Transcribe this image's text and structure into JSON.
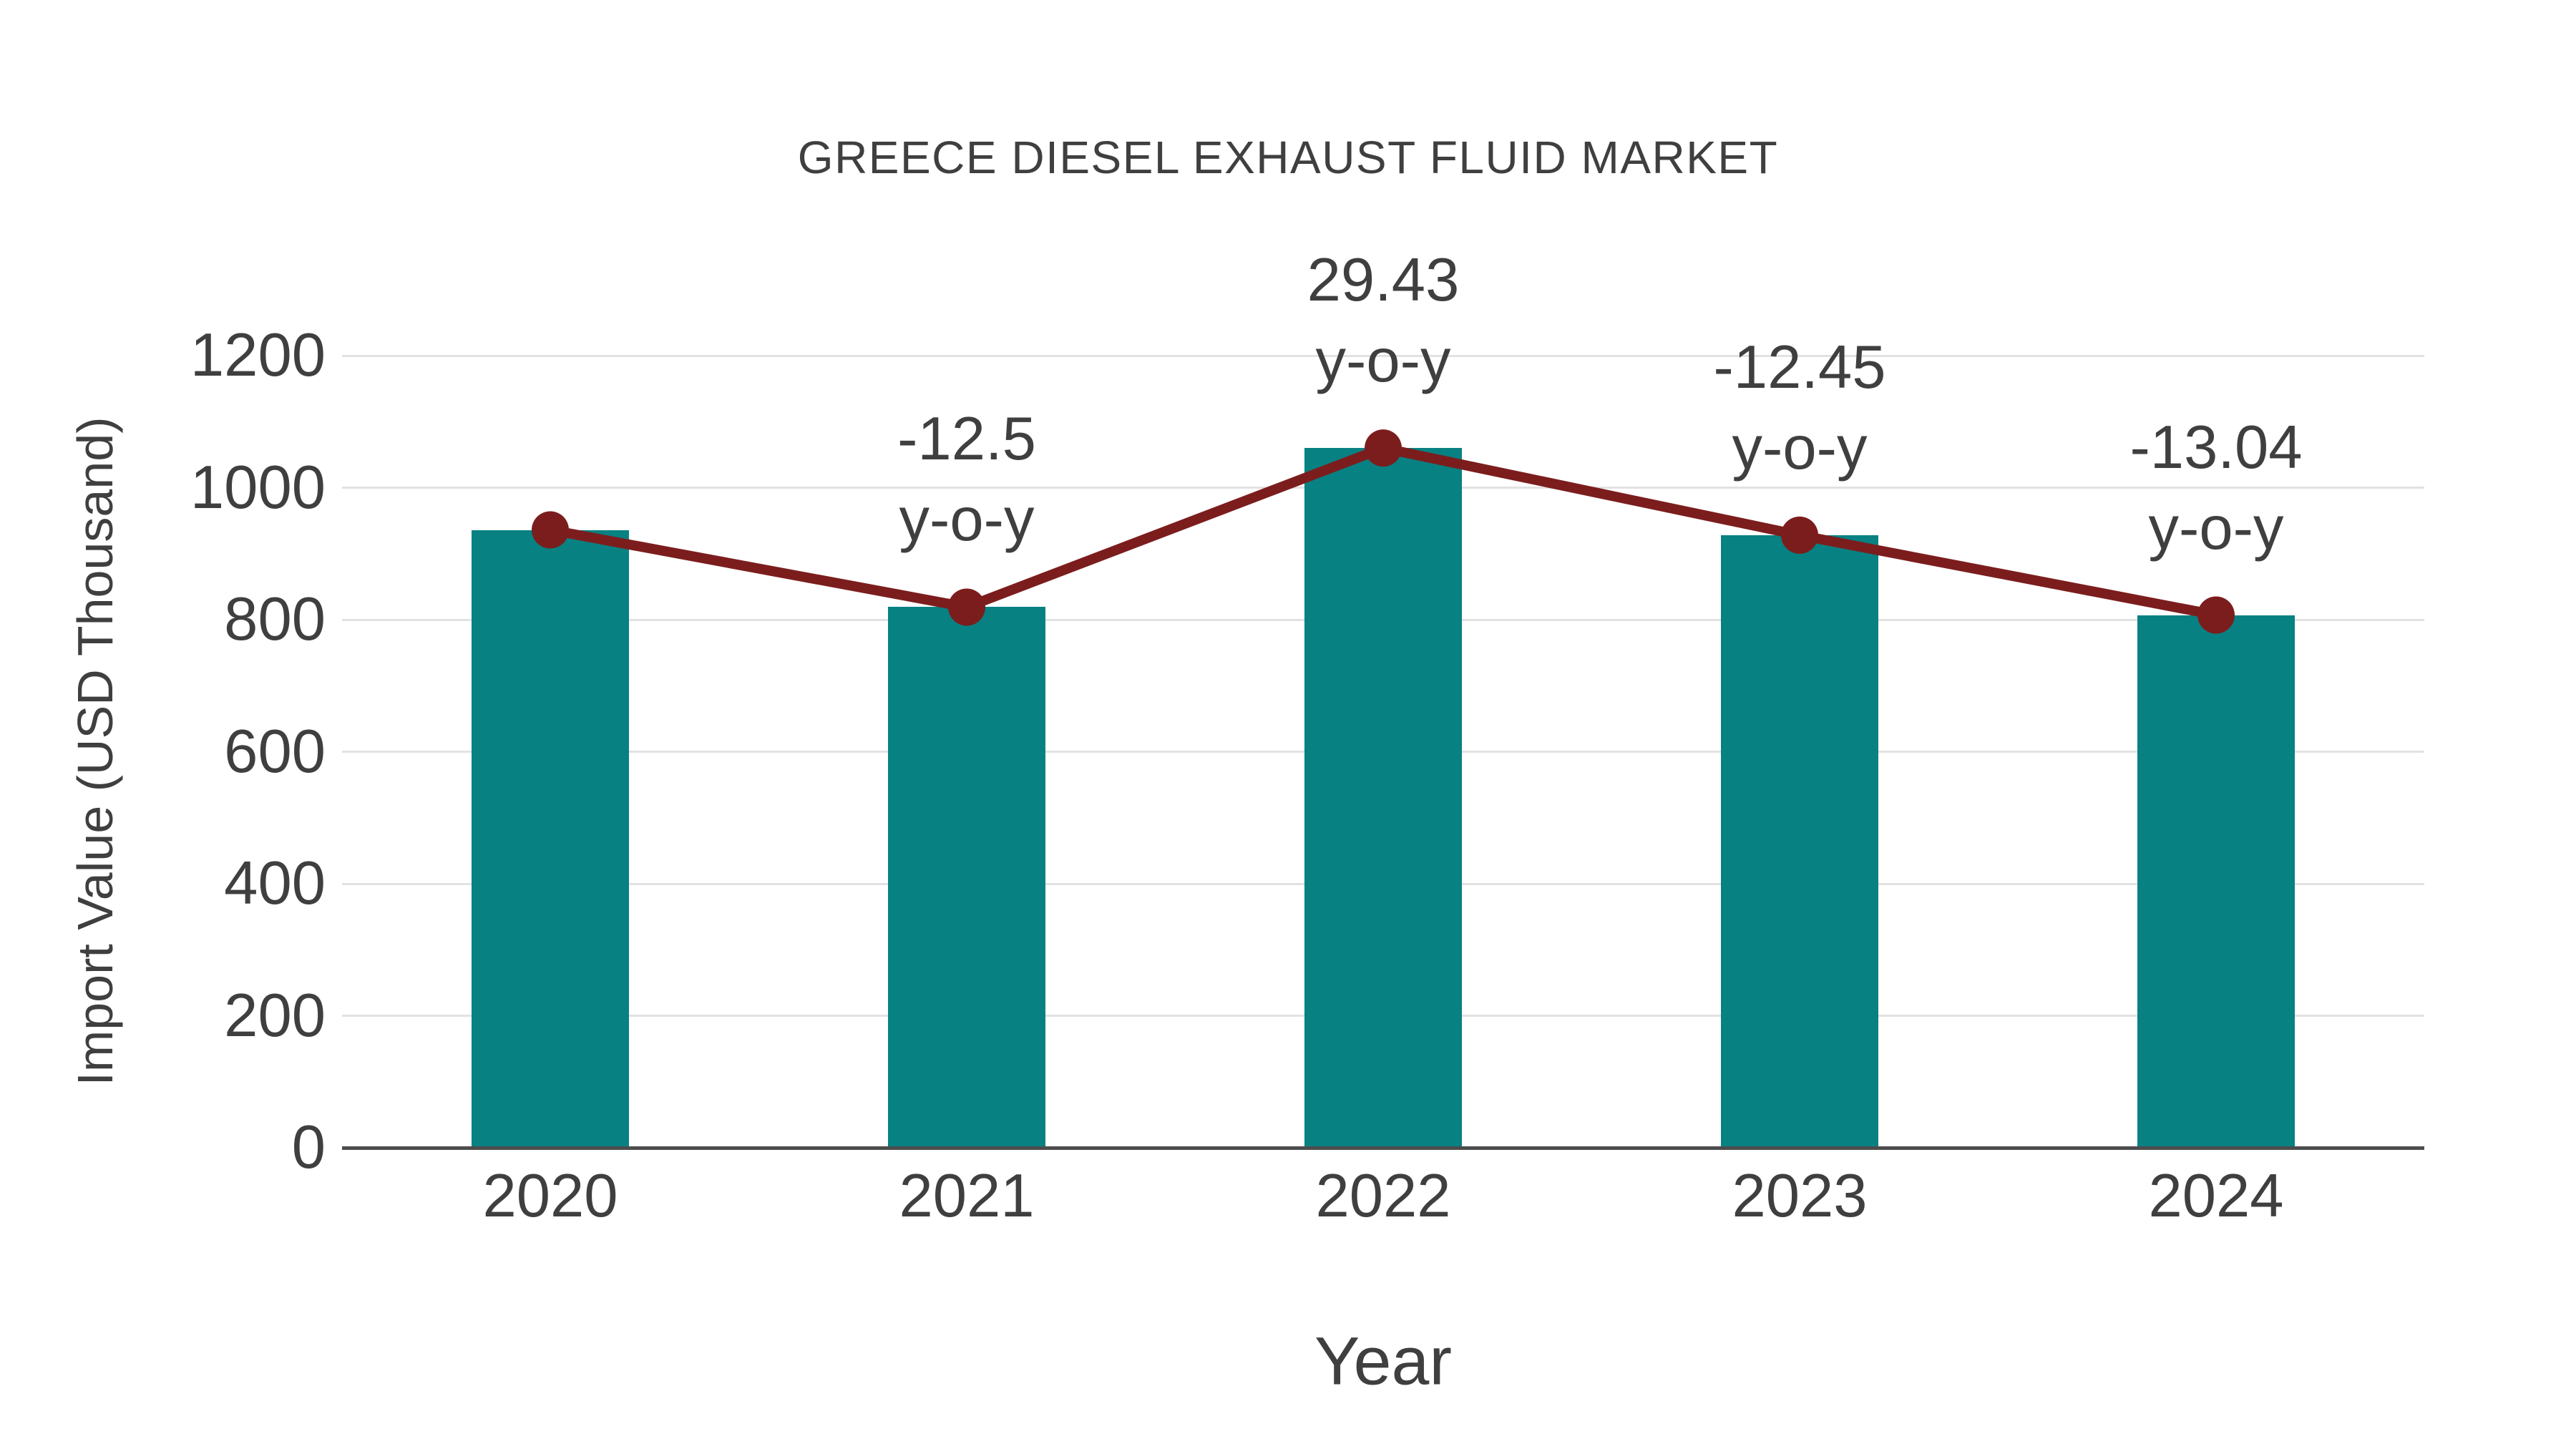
{
  "title": "GREECE DIESEL EXHAUST FLUID MARKET",
  "chart_data": {
    "type": "bar",
    "title": "GREECE DIESEL EXHAUST FLUID MARKET",
    "xlabel": "Year",
    "ylabel": "Import Value (USD Thousand)",
    "categories": [
      "2020",
      "2021",
      "2022",
      "2023",
      "2024"
    ],
    "series": [
      {
        "name": "Import Value (USD Thousand)",
        "type": "bar",
        "values": [
          936,
          819,
          1060,
          928,
          807
        ]
      },
      {
        "name": "y-o-y change (%)",
        "type": "line",
        "values": [
          null,
          -12.5,
          29.43,
          -12.45,
          -13.04
        ]
      }
    ],
    "annotations": [
      {
        "category": "2021",
        "lines": [
          "-12.5",
          "y-o-y"
        ]
      },
      {
        "category": "2022",
        "lines": [
          "29.43",
          "y-o-y"
        ]
      },
      {
        "category": "2023",
        "lines": [
          "-12.45",
          "y-o-y"
        ]
      },
      {
        "category": "2024",
        "lines": [
          "-13.04",
          "y-o-y"
        ]
      }
    ],
    "yticks": [
      0,
      200,
      400,
      600,
      800,
      1000,
      1200
    ],
    "ylim": [
      0,
      1300
    ],
    "grid": true,
    "legend_position": "none",
    "colors": {
      "bar": "#088183",
      "line": "#7C1D1D",
      "marker": "#7C1D1D",
      "grid": "#E2E2E2",
      "axis": "#4D4D4D",
      "text": "#3F3F3F"
    }
  }
}
